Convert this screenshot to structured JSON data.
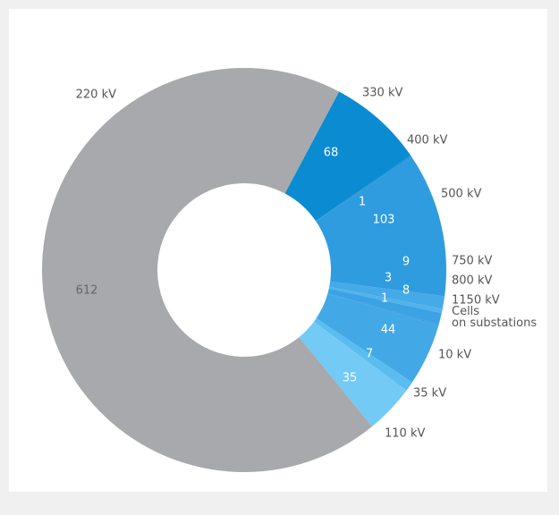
{
  "chart_data": {
    "type": "donut",
    "categories": [
      "330 kV",
      "400 kV",
      "500 kV",
      "750 kV",
      "800 kV",
      "1150 kV",
      "Cells on substations",
      "10 kV",
      "35 kV",
      "110 kV",
      "220 kV"
    ],
    "values": [
      68,
      1,
      103,
      9,
      3,
      8,
      1,
      44,
      7,
      35,
      612
    ],
    "colors": [
      "#0a8bd2",
      "#1c93d9",
      "#2f9ce0",
      "#45aae8",
      "#52b3ec",
      "#3ba2e3",
      "#3a9fe0",
      "#42a8e6",
      "#5bbcf0",
      "#72caf5",
      "#a7a9ac"
    ]
  }
}
